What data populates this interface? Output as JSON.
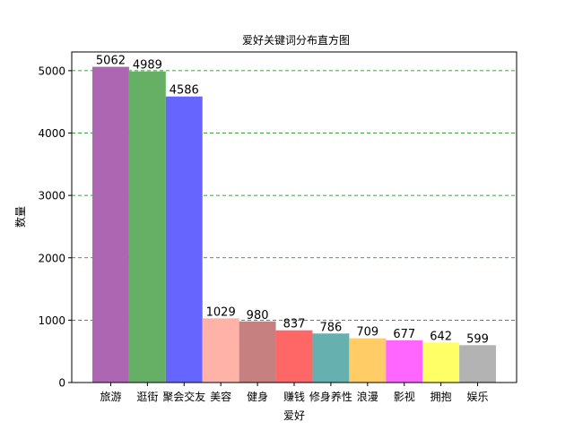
{
  "chart_data": {
    "type": "bar",
    "title": "爱好关键词分布直方图",
    "xlabel": "爱好",
    "ylabel": "数量",
    "categories": [
      "旅游",
      "逛街",
      "聚会交友",
      "美容",
      "健身",
      "赚钱",
      "修身养性",
      "浪漫",
      "影视",
      "拥抱",
      "娱乐"
    ],
    "values": [
      5062,
      4989,
      4586,
      1029,
      980,
      837,
      786,
      709,
      677,
      642,
      599
    ],
    "colors": [
      "#ad66b1",
      "#66b066",
      "#6666ff",
      "#ffb3a8",
      "#c78080",
      "#ff6666",
      "#66b0b0",
      "#ffcc66",
      "#ff66ff",
      "#ffff66",
      "#b3b3b3"
    ],
    "ylim": [
      0,
      5300
    ],
    "yticks": [
      0,
      1000,
      2000,
      3000,
      4000,
      5000
    ],
    "grid": true,
    "grid_color": "#008000"
  }
}
